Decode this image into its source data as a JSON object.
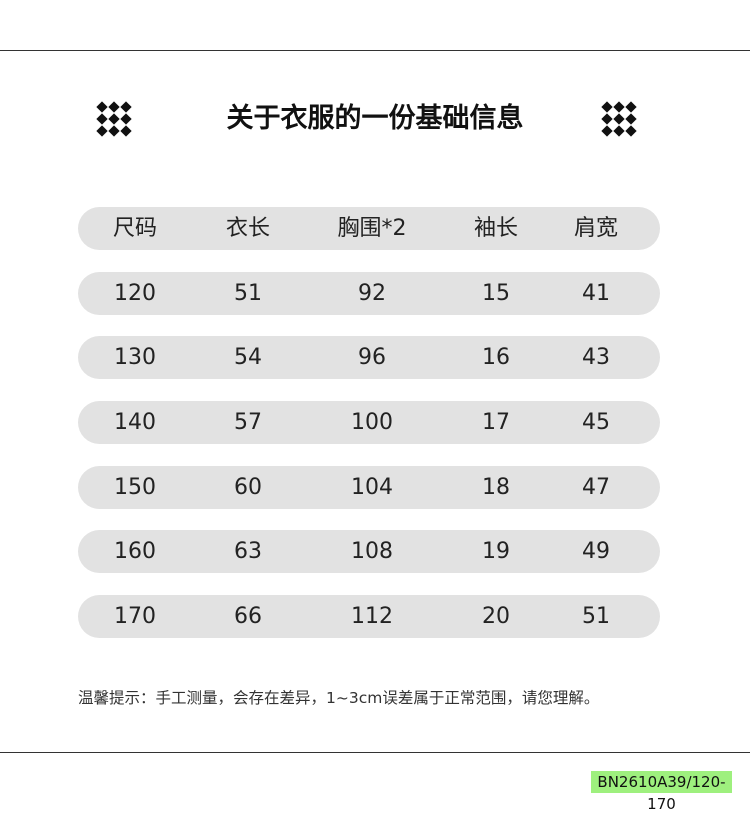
{
  "title": "关于衣服的一份基础信息",
  "table": {
    "headers": [
      "尺码",
      "衣长",
      "胸围*2",
      "袖长",
      "肩宽"
    ],
    "rows": [
      [
        "120",
        "51",
        "92",
        "15",
        "41"
      ],
      [
        "130",
        "54",
        "96",
        "16",
        "43"
      ],
      [
        "140",
        "57",
        "100",
        "17",
        "45"
      ],
      [
        "150",
        "60",
        "104",
        "18",
        "47"
      ],
      [
        "160",
        "63",
        "108",
        "19",
        "49"
      ],
      [
        "170",
        "66",
        "112",
        "20",
        "51"
      ]
    ]
  },
  "note": "温馨提示：手工测量，会存在差异，1~3cm误差属于正常范围，请您理解。",
  "badge": "BN2610A39/120-170",
  "colors": {
    "row_bg": "#e2e2e2",
    "badge_bg": "#9ef07e"
  }
}
